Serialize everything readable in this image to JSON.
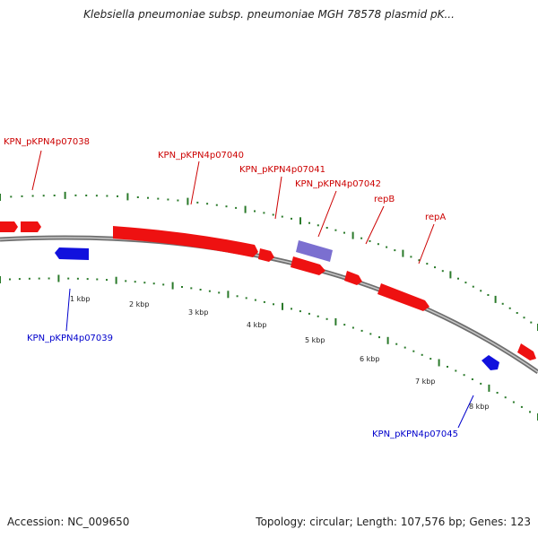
{
  "title": "Klebsiella pneumoniae subsp. pneumoniae MGH 78578 plasmid pK...",
  "footer": {
    "accession": "Accession: NC_009650",
    "summary": "Topology: circular; Length: 107,576 bp; Genes: 123"
  },
  "colors": {
    "forward_gene": "#ee1111",
    "reverse_gene": "#1111dd",
    "selected_gene": "#7b6fd0",
    "backbone": "#888888",
    "ticks": "#2a7a2a"
  },
  "scale_labels": [
    "1 kbp",
    "2 kbp",
    "3 kbp",
    "4 kbp",
    "5 kbp",
    "6 kbp",
    "7 kbp",
    "8 kbp"
  ],
  "gene_labels": [
    {
      "text": "KPN_pKPN4p07038",
      "strand": "forward"
    },
    {
      "text": "KPN_pKPN4p07040",
      "strand": "forward"
    },
    {
      "text": "KPN_pKPN4p07041",
      "strand": "forward"
    },
    {
      "text": "KPN_pKPN4p07042",
      "strand": "forward"
    },
    {
      "text": "repB",
      "strand": "forward"
    },
    {
      "text": "repA",
      "strand": "forward"
    },
    {
      "text": "KPN_pKPN4p07039",
      "strand": "reverse"
    },
    {
      "text": "KPN_pKPN4p07045",
      "strand": "reverse"
    }
  ]
}
